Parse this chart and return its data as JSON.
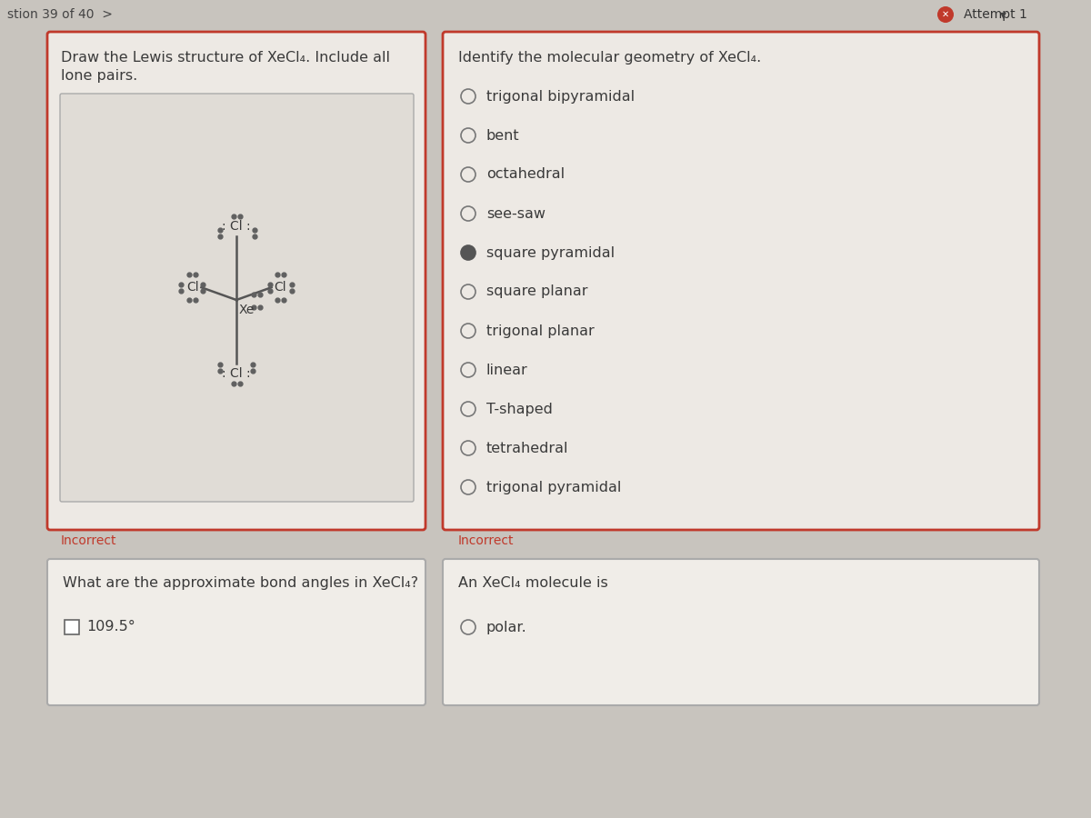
{
  "bg_color": "#c8c4be",
  "page_bg": "#c8c4be",
  "top_bar_bg": "#c8c4be",
  "card_bg": "#ede9e4",
  "inner_box_bg": "#e0dcd6",
  "card_border": "#c0392b",
  "title_top": "stion 39 of 40  >",
  "attempt_text": "Attempt 1",
  "lewis_title_line1": "Draw the Lewis structure of XeCl₄. Include all",
  "lewis_title_line2": "lone pairs.",
  "geometry_title": "Identify the molecular geometry of XeCl₄.",
  "geometry_options": [
    {
      "text": "trigonal bipyramidal",
      "selected": false
    },
    {
      "text": "bent",
      "selected": false
    },
    {
      "text": "octahedral",
      "selected": false
    },
    {
      "text": "see-saw",
      "selected": false
    },
    {
      "text": "square pyramidal",
      "selected": true
    },
    {
      "text": "square planar",
      "selected": false
    },
    {
      "text": "trigonal planar",
      "selected": false
    },
    {
      "text": "linear",
      "selected": false
    },
    {
      "text": "T-shaped",
      "selected": false
    },
    {
      "text": "tetrahedral",
      "selected": false
    },
    {
      "text": "trigonal pyramidal",
      "selected": false
    }
  ],
  "incorrect_color": "#c0392b",
  "incorrect_text": "Incorrect",
  "bond_angles_title": "What are the approximate bond angles in XeCl₄?",
  "bond_angles_options": [
    "109.5°"
  ],
  "polar_title": "An XeCl₄ molecule is",
  "polar_options": [
    "polar."
  ],
  "text_color": "#3a3a3a",
  "radio_color": "#777777",
  "radio_selected_color": "#555555"
}
